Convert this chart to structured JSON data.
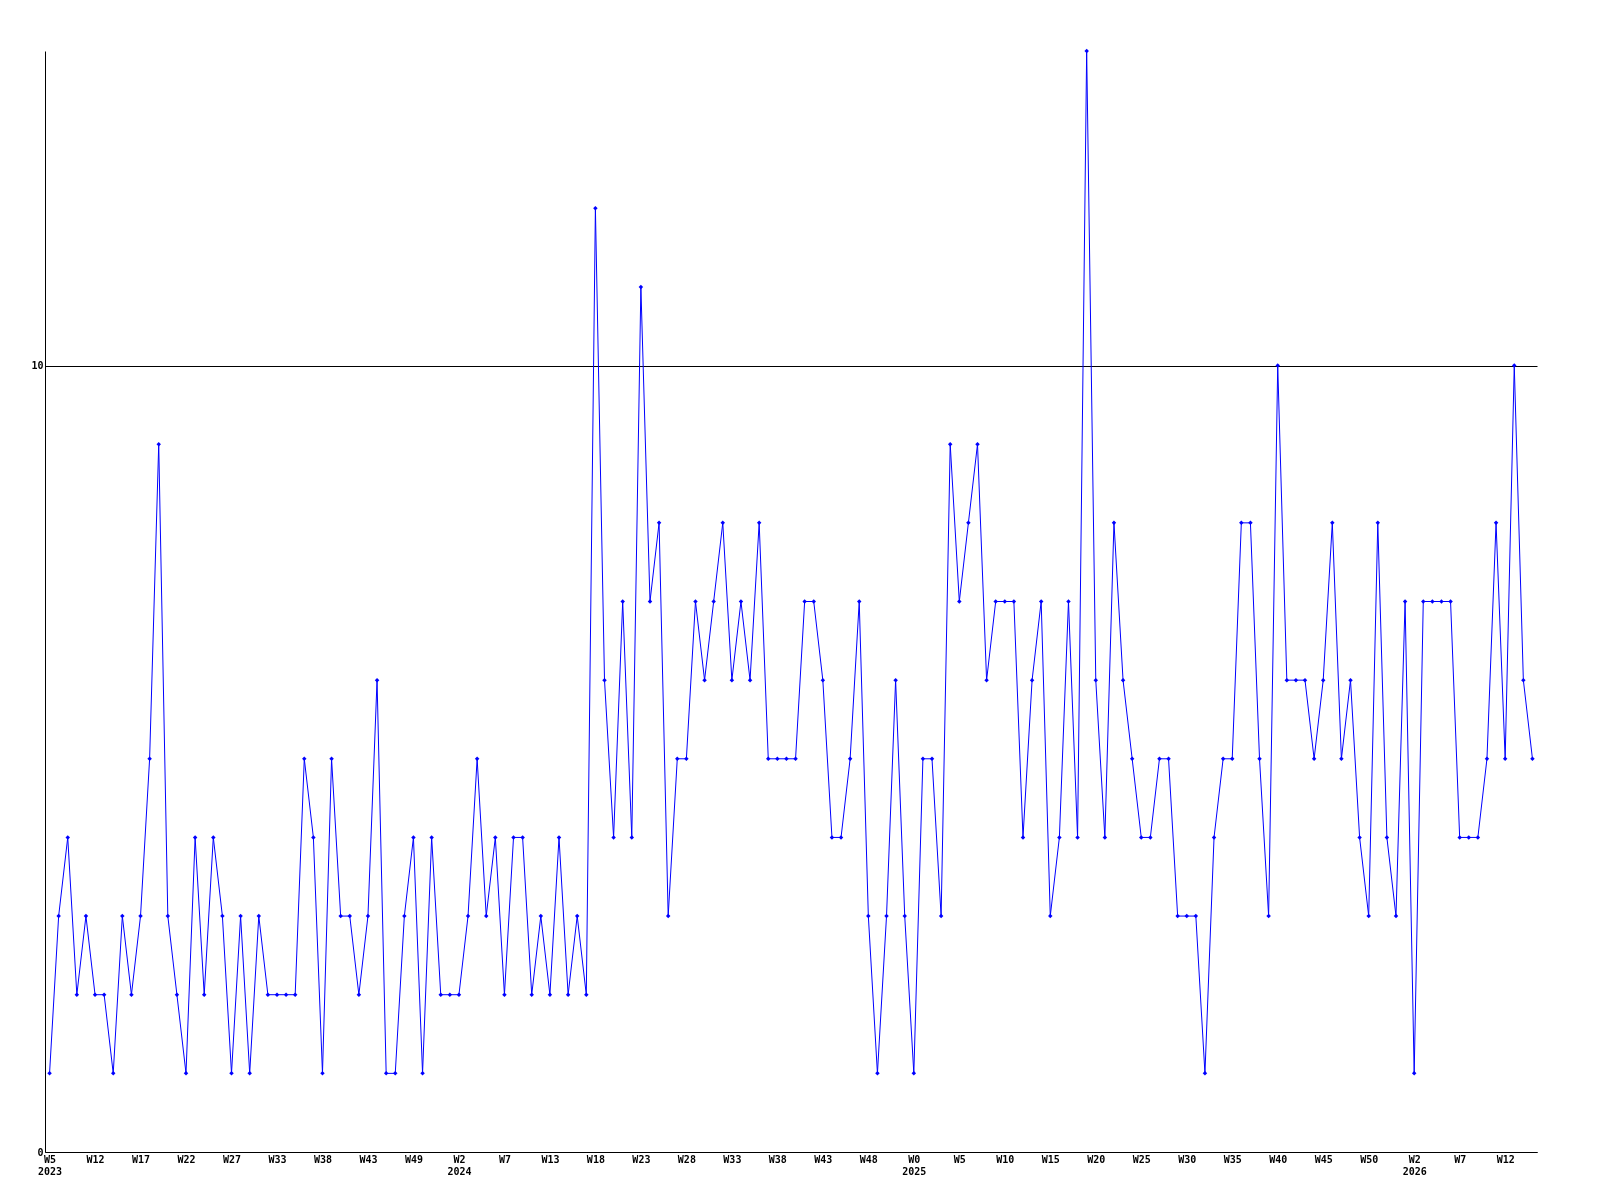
{
  "chart_data": {
    "type": "line",
    "categories": [
      "W5\n2023",
      null,
      null,
      null,
      null,
      "W12",
      null,
      null,
      null,
      null,
      "W17",
      null,
      null,
      null,
      null,
      "W22",
      null,
      null,
      null,
      null,
      "W27",
      null,
      null,
      null,
      null,
      "W33",
      null,
      null,
      null,
      null,
      "W38",
      null,
      null,
      null,
      null,
      "W43",
      null,
      null,
      null,
      null,
      "W49",
      null,
      null,
      null,
      null,
      "W2\n2024",
      null,
      null,
      null,
      null,
      "W7",
      null,
      null,
      null,
      null,
      "W13",
      null,
      null,
      null,
      null,
      "W18",
      null,
      null,
      null,
      null,
      "W23",
      null,
      null,
      null,
      null,
      "W28",
      null,
      null,
      null,
      null,
      "W33",
      null,
      null,
      null,
      null,
      "W38",
      null,
      null,
      null,
      null,
      "W43",
      null,
      null,
      null,
      null,
      "W48",
      null,
      null,
      null,
      null,
      "W0\n2025",
      null,
      null,
      null,
      null,
      "W5",
      null,
      null,
      null,
      null,
      "W10",
      null,
      null,
      null,
      null,
      "W15",
      null,
      null,
      null,
      null,
      "W20",
      null,
      null,
      null,
      null,
      "W25",
      null,
      null,
      null,
      null,
      "W30",
      null,
      null,
      null,
      null,
      "W35",
      null,
      null,
      null,
      null,
      "W40",
      null,
      null,
      null,
      null,
      "W45",
      null,
      null,
      null,
      null,
      "W50",
      null,
      null,
      null,
      null,
      "W2\n2026",
      null,
      null,
      null,
      null,
      "W7",
      null,
      null,
      null,
      null,
      "W12",
      null,
      null,
      null
    ],
    "series": [
      {
        "color": "#0000ff",
        "values": [
          1,
          3,
          4,
          2,
          3,
          2,
          2,
          1,
          3,
          2,
          3,
          5,
          9,
          3,
          2,
          1,
          4,
          2,
          4,
          3,
          1,
          3,
          1,
          3,
          2,
          2,
          2,
          2,
          5,
          4,
          1,
          5,
          3,
          3,
          2,
          3,
          6,
          1,
          1,
          3,
          4,
          1,
          4,
          2,
          2,
          2,
          3,
          5,
          3,
          4,
          2,
          4,
          4,
          2,
          3,
          2,
          4,
          2,
          3,
          2,
          12,
          6,
          4,
          7,
          4,
          11,
          7,
          8,
          3,
          5,
          5,
          7,
          6,
          7,
          8,
          6,
          7,
          6,
          8,
          5,
          5,
          5,
          5,
          7,
          7,
          6,
          4,
          4,
          5,
          7,
          3,
          1,
          3,
          6,
          3,
          1,
          5,
          5,
          3,
          9,
          7,
          8,
          9,
          6,
          7,
          7,
          7,
          4,
          6,
          7,
          3,
          4,
          7,
          4,
          14,
          6,
          4,
          8,
          6,
          5,
          4,
          4,
          5,
          5,
          3,
          3,
          3,
          1,
          4,
          5,
          5,
          8,
          8,
          5,
          3,
          10,
          6,
          6,
          6,
          5,
          6,
          8,
          5,
          6,
          4,
          3,
          8,
          4,
          3,
          7,
          1,
          7,
          7,
          7,
          7,
          4,
          4,
          4,
          5,
          8,
          5,
          10,
          6,
          5
        ]
      }
    ],
    "ylim": [
      0,
      14
    ],
    "yticks": [
      0,
      10
    ],
    "grid": "y",
    "marker": "diamond",
    "line_style": "solid"
  }
}
